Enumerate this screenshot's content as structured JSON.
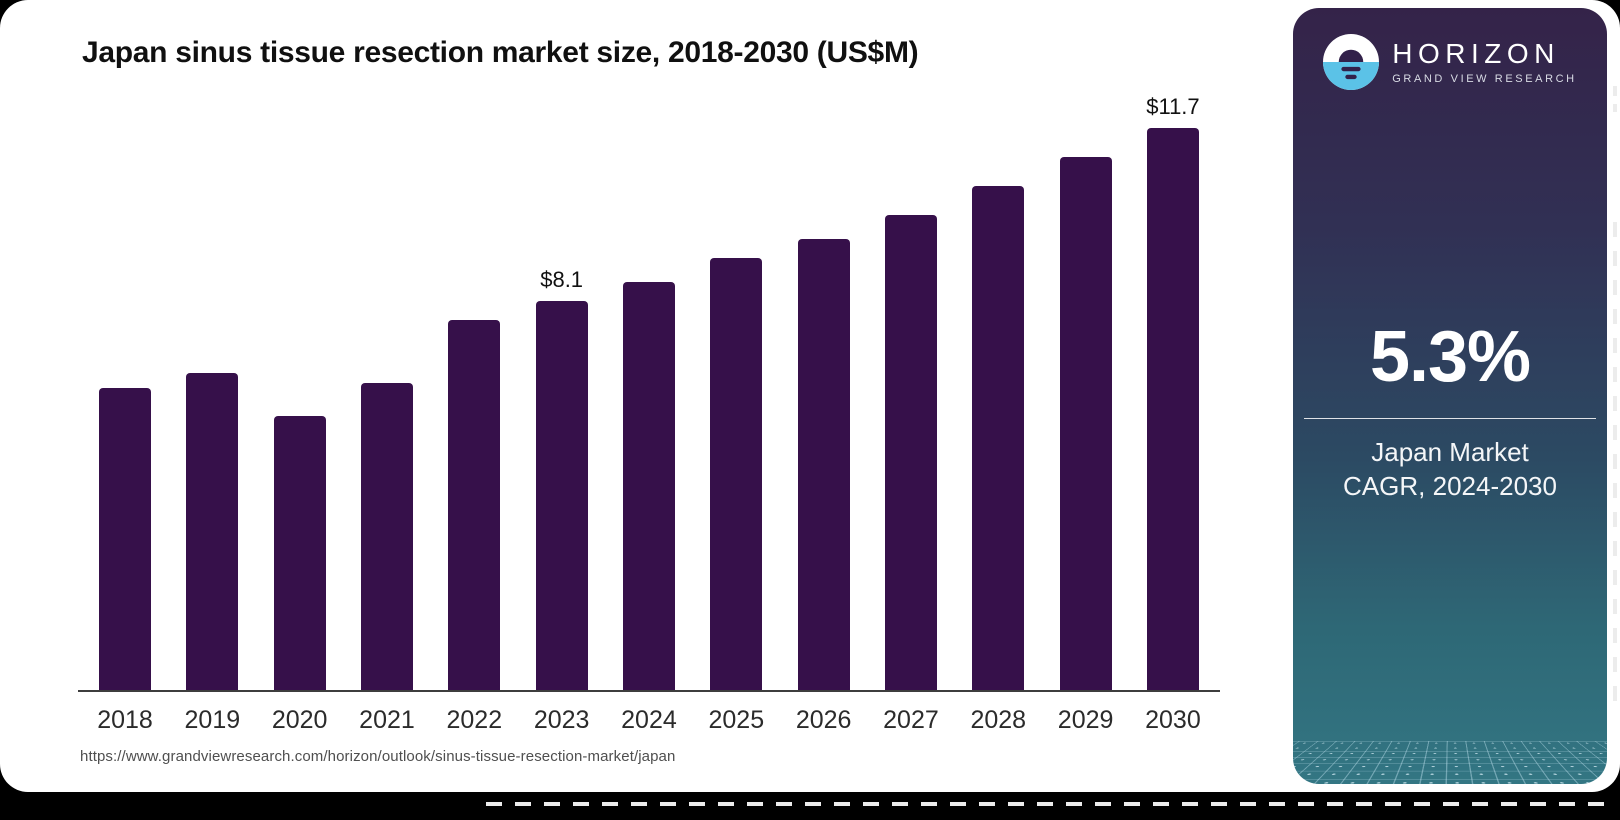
{
  "title": "Japan sinus tissue resection market size, 2018-2030 (US$M)",
  "source_url": "https://www.grandviewresearch.com/horizon/outlook/sinus-tissue-resection-market/japan",
  "sidebar": {
    "logo": {
      "brand": "HORIZON",
      "subtitle": "GRAND VIEW RESEARCH",
      "icon": "horizon-sun-over-water-icon"
    },
    "cagr_value": "5.3%",
    "cagr_caption_line1": "Japan Market",
    "cagr_caption_line2": "CAGR, 2024-2030"
  },
  "colors": {
    "bar": "#36104a",
    "sidebar_top": "#342349",
    "sidebar_bottom": "#337683",
    "logo_cyan": "#5bc2e7",
    "axis_line": "#3d3d3d"
  },
  "chart_data": {
    "type": "bar",
    "title": "Japan sinus tissue resection market size, 2018-2030 (US$M)",
    "unit": "US$M",
    "xlabel": "",
    "ylabel": "",
    "ylim": [
      0,
      12.5
    ],
    "grid": false,
    "legend": null,
    "categories": [
      "2018",
      "2019",
      "2020",
      "2021",
      "2022",
      "2023",
      "2024",
      "2025",
      "2026",
      "2027",
      "2028",
      "2029",
      "2030"
    ],
    "values": [
      6.3,
      6.6,
      5.7,
      6.4,
      7.7,
      8.1,
      8.5,
      9.0,
      9.4,
      9.9,
      10.5,
      11.1,
      11.7
    ],
    "points": [
      {
        "year": "2018",
        "value": 6.3,
        "label": null
      },
      {
        "year": "2019",
        "value": 6.6,
        "label": null
      },
      {
        "year": "2020",
        "value": 5.7,
        "label": null
      },
      {
        "year": "2021",
        "value": 6.4,
        "label": null
      },
      {
        "year": "2022",
        "value": 7.7,
        "label": null
      },
      {
        "year": "2023",
        "value": 8.1,
        "label": "$8.1"
      },
      {
        "year": "2024",
        "value": 8.5,
        "label": null
      },
      {
        "year": "2025",
        "value": 9.0,
        "label": null
      },
      {
        "year": "2026",
        "value": 9.4,
        "label": null
      },
      {
        "year": "2027",
        "value": 9.9,
        "label": null
      },
      {
        "year": "2028",
        "value": 10.5,
        "label": null
      },
      {
        "year": "2029",
        "value": 11.1,
        "label": null
      },
      {
        "year": "2030",
        "value": 11.7,
        "label": "$11.7"
      }
    ]
  }
}
